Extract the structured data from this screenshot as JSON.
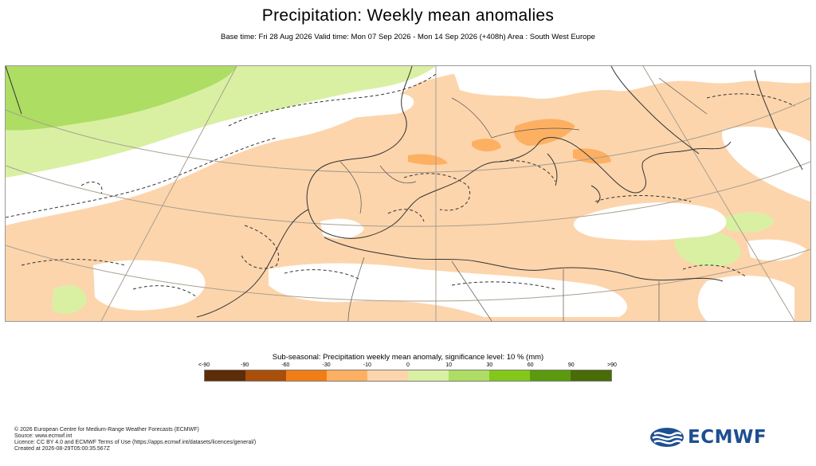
{
  "header": {
    "title": "Precipitation: Weekly mean anomalies",
    "subtitle": "Base time: Fri 28 Aug 2026 Valid time: Mon 07 Sep 2026 - Mon 14 Sep 2026 (+408h) Area : South West Europe"
  },
  "map": {
    "area": "South West Europe",
    "colors": {
      "ocean_neutral": "#ffffff",
      "dry_10_30": "#fdd5ac",
      "dry_30_60": "#fdb062",
      "wet_0_10": "#d9f0a3",
      "wet_10_30": "#addd63",
      "coastline": "#333333",
      "graticule": "#a89f90"
    }
  },
  "legend": {
    "title": "Sub-seasonal: Precipitation weekly mean anomaly, significance level: 10 % (mm)",
    "ticks": [
      "<-90",
      "-90",
      "-60",
      "-30",
      "-10",
      "0",
      "10",
      "30",
      "60",
      "90",
      ">90"
    ],
    "colors": [
      "#5c2d06",
      "#a94f09",
      "#f07e15",
      "#fdb062",
      "#fdd5ac",
      "#d9f0a3",
      "#addd63",
      "#84c71b",
      "#5b9a0e",
      "#496c07"
    ]
  },
  "footer": {
    "line1": "© 2026 European Centre for Medium-Range Weather Forecasts (ECMWF)",
    "line2": "Source: www.ecmwf.int",
    "line3": "Licence: CC BY 4.0 and ECMWF Terms of Use (https://apps.ecmwf.int/datasets/licences/general/)",
    "line4": "Created at 2026-08-29T05:00:35.567Z"
  },
  "logo": {
    "text": "ECMWF",
    "icon": "ecmwf-logo-icon"
  }
}
